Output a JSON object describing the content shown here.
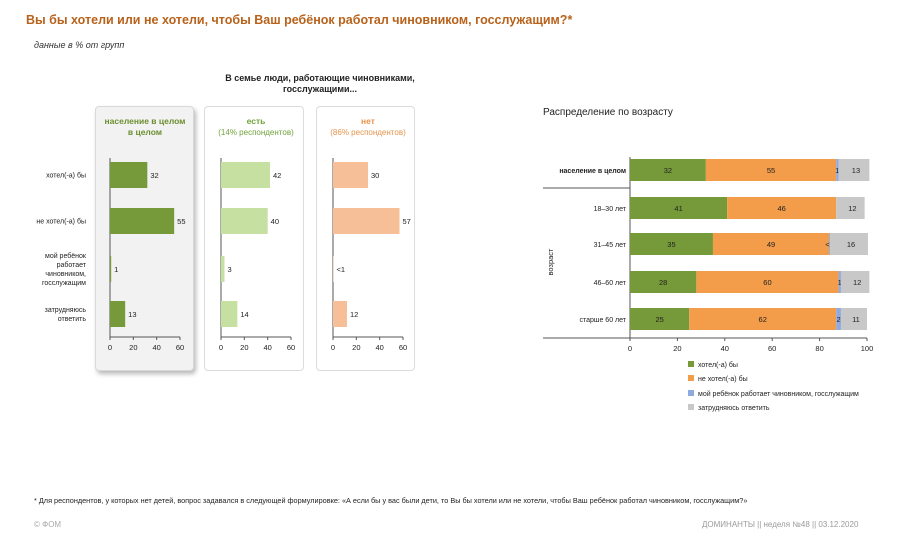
{
  "title": "Вы бы хотели или не хотели, чтобы Ваш ребёнок работал чиновником, госслужащим?*",
  "subtitle": "данные в % от групп",
  "group_header": "В семье люди, работающие чиновниками, госслужащими...",
  "footnote": "*  Для респондентов, у которых нет детей, вопрос задавался в следующей формулировке: «А если бы у вас были дети, то Вы бы хотели или не хотели, чтобы Ваш ребёнок работал чиновником, госслужащим?»",
  "footer_left": "© ФОМ",
  "footer_right": "ДОМИНАНТЫ  ||  неделя №48 || 03.12.2020",
  "chart_data": [
    {
      "type": "bar",
      "orientation": "horizontal",
      "categories": [
        "хотел(-а) бы",
        "не хотел(-а) бы",
        "мой ребёнок работает чиновником, госслужащим",
        "затрудняюсь ответить"
      ],
      "panels": [
        {
          "title": "население в целом",
          "subtitle": "",
          "color": "#76993a",
          "title_color": "#6b8e2f",
          "values": [
            32,
            55,
            1,
            13
          ],
          "labels": [
            "32",
            "55",
            "1",
            "13"
          ]
        },
        {
          "title": "есть",
          "subtitle": "(14% респондентов)",
          "color": "#c6e0a2",
          "title_color": "#6fa23a",
          "values": [
            42,
            40,
            3,
            14
          ],
          "labels": [
            "42",
            "40",
            "3",
            "14"
          ]
        },
        {
          "title": "нет",
          "subtitle": "(86% респондентов)",
          "color": "#f7bf97",
          "title_color": "#e8934a",
          "values": [
            30,
            57,
            0.4,
            12
          ],
          "labels": [
            "30",
            "57",
            "<1",
            "12"
          ]
        }
      ],
      "xticks": [
        0,
        20,
        40,
        60
      ],
      "xlim": [
        0,
        60
      ]
    },
    {
      "type": "bar",
      "orientation": "horizontal",
      "stacked": true,
      "title": "Распределение по возрасту",
      "ylabel": "возраст",
      "categories": [
        "население в целом",
        "18–30 лет",
        "31–45 лет",
        "46–60 лет",
        "старше 60 лет"
      ],
      "series": [
        {
          "name": "хотел(-а) бы",
          "color": "#76993a",
          "values": [
            32,
            41,
            35,
            28,
            25
          ],
          "labels": [
            "32",
            "41",
            "35",
            "28",
            "25"
          ]
        },
        {
          "name": "не хотел(-а) бы",
          "color": "#f39c4a",
          "values": [
            55,
            46,
            49,
            60,
            62
          ],
          "labels": [
            "55",
            "46",
            "49",
            "60",
            "62"
          ]
        },
        {
          "name": "мой ребёнок работает чиновником, госслужащим",
          "color": "#8faadc",
          "values": [
            1,
            0,
            0.4,
            1,
            2
          ],
          "labels": [
            "1",
            "",
            "<1",
            "1",
            "2"
          ]
        },
        {
          "name": "затрудняюсь ответить",
          "color": "#c8c8c8",
          "values": [
            13,
            12,
            16,
            12,
            11
          ],
          "labels": [
            "13",
            "12",
            "16",
            "12",
            "11"
          ]
        }
      ],
      "xticks": [
        0,
        20,
        40,
        60,
        80,
        100
      ],
      "xlim": [
        0,
        100
      ],
      "legend_position": "bottom-right"
    }
  ]
}
